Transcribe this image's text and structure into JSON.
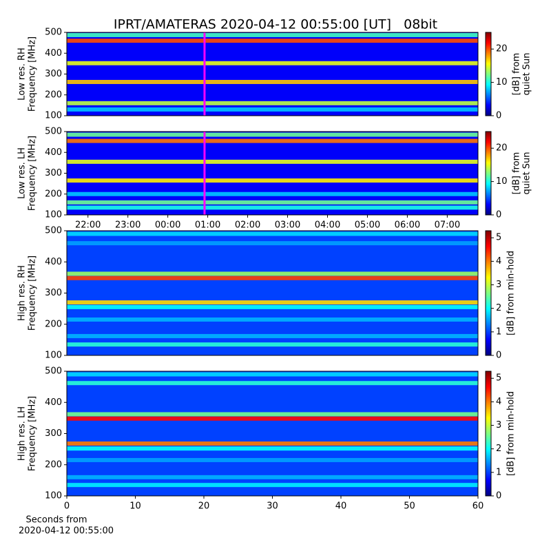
{
  "title": "IPRT/AMATERAS 2020-04-12 00:55:00 [UT]   08bit",
  "chart_data": [
    {
      "type": "heatmap",
      "ylabel": [
        "Low res. RH",
        "Frequency [MHz]"
      ],
      "xlim": [
        21.47,
        31.77
      ],
      "ylim": [
        100,
        500
      ],
      "yticks": [
        100,
        200,
        300,
        400,
        500
      ],
      "clim": [
        0,
        25
      ],
      "cticks": [
        0,
        10,
        20
      ],
      "clabel": [
        "[dB] from",
        "quiet Sun"
      ],
      "background": 3,
      "bands": [
        {
          "freq": 487,
          "level": 11
        },
        {
          "freq": 460,
          "level": 20
        },
        {
          "freq": 352,
          "level": 15
        },
        {
          "freq": 262,
          "level": 17
        },
        {
          "freq": 160,
          "level": 14
        },
        {
          "freq": 130,
          "level": 8
        }
      ],
      "marker": {
        "x": 24.92,
        "color": "#ff00ff"
      }
    },
    {
      "type": "heatmap",
      "ylabel": [
        "Low res. LH",
        "Frequency [MHz]"
      ],
      "xlim": [
        21.47,
        31.77
      ],
      "ylim": [
        100,
        500
      ],
      "xticks": [
        {
          "value": 22,
          "label": "22:00"
        },
        {
          "value": 23,
          "label": "23:00"
        },
        {
          "value": 24,
          "label": "00:00"
        },
        {
          "value": 25,
          "label": "01:00"
        },
        {
          "value": 26,
          "label": "02:00"
        },
        {
          "value": 27,
          "label": "03:00"
        },
        {
          "value": 28,
          "label": "04:00"
        },
        {
          "value": 29,
          "label": "05:00"
        },
        {
          "value": 30,
          "label": "06:00"
        },
        {
          "value": 31,
          "label": "07:00"
        }
      ],
      "yticks": [
        100,
        200,
        300,
        400,
        500
      ],
      "clim": [
        0,
        25
      ],
      "cticks": [
        0,
        10,
        20
      ],
      "clabel": [
        "[dB] from",
        "quiet Sun"
      ],
      "background": 3,
      "bands": [
        {
          "freq": 485,
          "level": 12
        },
        {
          "freq": 455,
          "level": 19
        },
        {
          "freq": 355,
          "level": 15
        },
        {
          "freq": 265,
          "level": 16
        },
        {
          "freq": 200,
          "level": 8
        },
        {
          "freq": 160,
          "level": 12
        },
        {
          "freq": 135,
          "level": 10
        }
      ],
      "marker": {
        "x": 24.92,
        "color": "#ff00ff"
      }
    },
    {
      "type": "heatmap",
      "ylabel": [
        "High res. RH",
        "Frequency [MHz]"
      ],
      "xlim": [
        0,
        60
      ],
      "ylim": [
        100,
        500
      ],
      "yticks": [
        100,
        200,
        300,
        400,
        500
      ],
      "clim": [
        0,
        5.3
      ],
      "cticks": [
        0,
        1,
        2,
        3,
        4,
        5
      ],
      "clabel": [
        "[dB] from min-hold"
      ],
      "background": 1,
      "bands": [
        {
          "freq": 490,
          "level": 1.8
        },
        {
          "freq": 460,
          "level": 1.5
        },
        {
          "freq": 362,
          "level": 2.8
        },
        {
          "freq": 348,
          "level": 4.3
        },
        {
          "freq": 270,
          "level": 3.5
        },
        {
          "freq": 255,
          "level": 2
        },
        {
          "freq": 215,
          "level": 1.6
        },
        {
          "freq": 162,
          "level": 1.6
        },
        {
          "freq": 135,
          "level": 2.2
        }
      ]
    },
    {
      "type": "heatmap",
      "ylabel": [
        "High res. LH",
        "Frequency [MHz]"
      ],
      "xlim": [
        0,
        60
      ],
      "ylim": [
        100,
        500
      ],
      "xticks": [
        0,
        10,
        20,
        30,
        40,
        50,
        60
      ],
      "yticks": [
        100,
        200,
        300,
        400,
        500
      ],
      "clim": [
        0,
        5.3
      ],
      "cticks": [
        0,
        1,
        2,
        3,
        4,
        5
      ],
      "clabel": [
        "[dB] from min-hold"
      ],
      "xlabel": [
        "Seconds from",
        "2020-04-12 00:55:00"
      ],
      "background": 1,
      "bands": [
        {
          "freq": 490,
          "level": 1.8
        },
        {
          "freq": 462,
          "level": 2.2
        },
        {
          "freq": 362,
          "level": 2.6
        },
        {
          "freq": 348,
          "level": 4.6
        },
        {
          "freq": 268,
          "level": 4
        },
        {
          "freq": 252,
          "level": 2
        },
        {
          "freq": 215,
          "level": 1.5
        },
        {
          "freq": 160,
          "level": 1.6
        },
        {
          "freq": 135,
          "level": 1.9
        }
      ]
    }
  ]
}
